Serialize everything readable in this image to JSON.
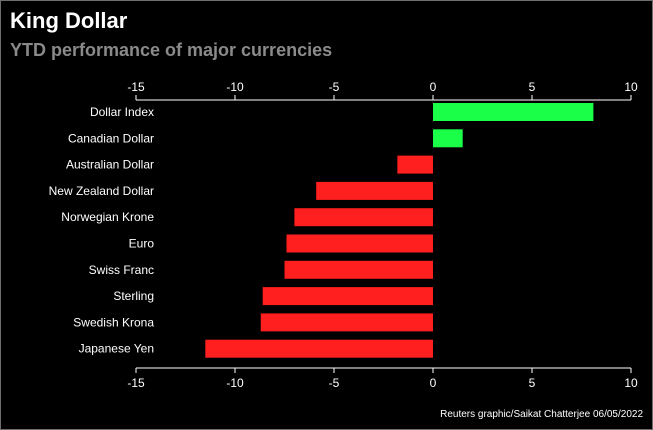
{
  "header": {
    "title": "King Dollar",
    "subtitle": "YTD performance of major currencies"
  },
  "source": "Reuters graphic/Saikat Chatterjee 06/05/2022",
  "colors": {
    "positive": "#1aff47",
    "negative": "#ff1f1f",
    "axis": "#ffffff",
    "background": "#000000"
  },
  "chart_data": {
    "type": "bar",
    "orientation": "horizontal",
    "title": "King Dollar",
    "subtitle": "YTD performance of major currencies",
    "xlabel": "",
    "ylabel": "",
    "xlim": [
      -15,
      10
    ],
    "xticks": [
      -15,
      -10,
      -5,
      0,
      5,
      10
    ],
    "xtick_labels": [
      "-15",
      "-10",
      "-5",
      "0",
      "5",
      "10"
    ],
    "grid": false,
    "categories": [
      "Dollar Index",
      "Canadian Dollar",
      "Australian Dollar",
      "New Zealand Dollar",
      "Norwegian Krone",
      "Euro",
      "Swiss Franc",
      "Sterling",
      "Swedish Krona",
      "Japanese Yen"
    ],
    "values": [
      8.1,
      1.5,
      -1.8,
      -5.9,
      -7.0,
      -7.4,
      -7.5,
      -8.6,
      -8.7,
      -11.5
    ]
  }
}
